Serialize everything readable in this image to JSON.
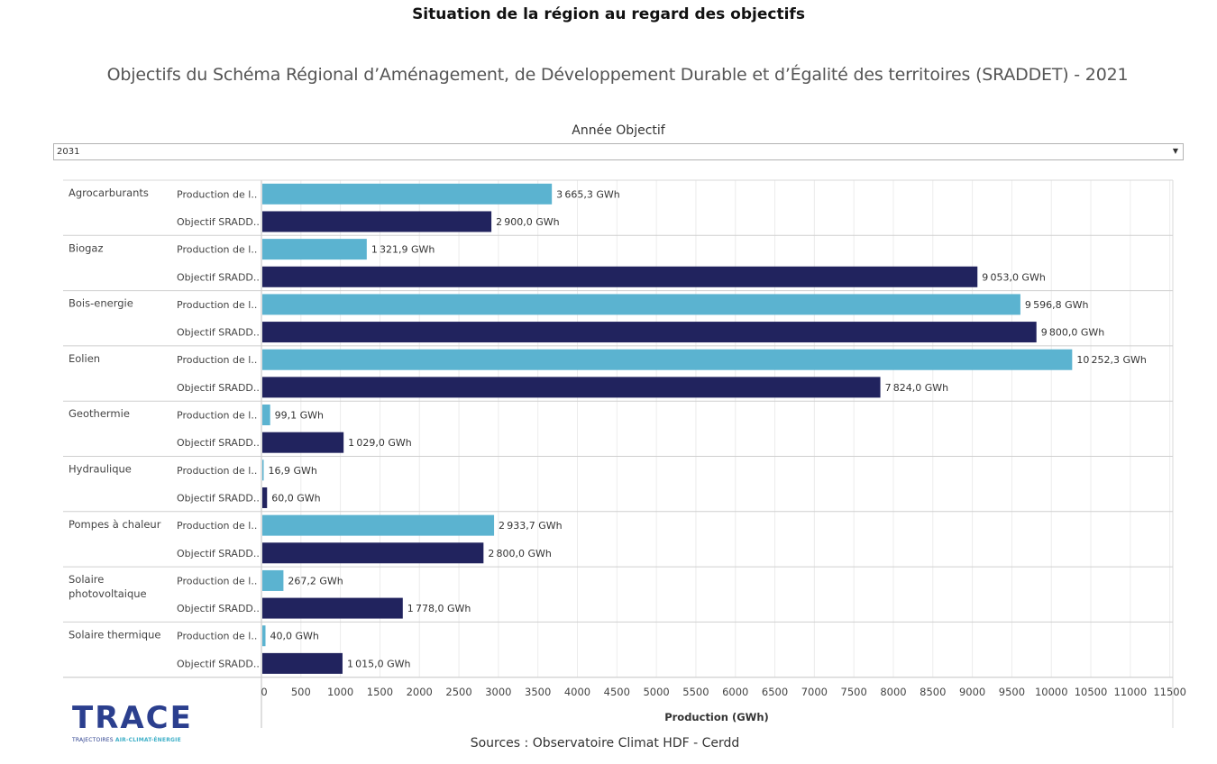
{
  "page": {
    "title": "Situation de la région au regard des objectifs",
    "subtitle": "Objectifs du Schéma Régional d’Aménagement, de Développement Durable et d’Égalité des territoires (SRADDET) - 2021",
    "filter_label": "Année Objectif",
    "filter_value": "2031",
    "sources": "Sources : Observatoire Climat HDF - Cerdd"
  },
  "logo": {
    "word": "TRACE",
    "tagline_part1": "TRAJECTOIRES ",
    "tagline_part2": "AIR-CLIMAT-ÉNERGIE"
  },
  "chart_data": {
    "type": "bar",
    "orientation": "horizontal",
    "xlabel": "Production (GWh)",
    "xlim": [
      0,
      11500
    ],
    "xticks": [
      0,
      500,
      1000,
      1500,
      2000,
      2500,
      3000,
      3500,
      4000,
      4500,
      5000,
      5500,
      6000,
      6500,
      7000,
      7500,
      8000,
      8500,
      9000,
      9500,
      10000,
      10500,
      11000,
      11500
    ],
    "grid": true,
    "unit": "GWh",
    "series_labels": [
      "Production de l..",
      "Objectif SRADD.."
    ],
    "colors": [
      "#5bb3d0",
      "#21235e"
    ],
    "categories": [
      "Agrocarburants",
      "Biogaz",
      "Bois-energie",
      "Eolien",
      "Geothermie",
      "Hydraulique",
      "Pompes à chaleur",
      "Solaire photovoltaique",
      "Solaire thermique"
    ],
    "category_lines": [
      [
        "Agrocarburants"
      ],
      [
        "Biogaz"
      ],
      [
        "Bois-energie"
      ],
      [
        "Eolien"
      ],
      [
        "Geothermie"
      ],
      [
        "Hydraulique"
      ],
      [
        "Pompes à chaleur"
      ],
      [
        "Solaire",
        "photovoltaique"
      ],
      [
        "Solaire thermique"
      ]
    ],
    "series": [
      {
        "values": [
          3665.3,
          1321.9,
          9596.8,
          10252.3,
          99.1,
          16.9,
          2933.7,
          267.2,
          40.0
        ]
      },
      {
        "values": [
          2900.0,
          9053.0,
          9800.0,
          7824.0,
          1029.0,
          60.0,
          2800.0,
          1778.0,
          1015.0
        ]
      }
    ]
  }
}
